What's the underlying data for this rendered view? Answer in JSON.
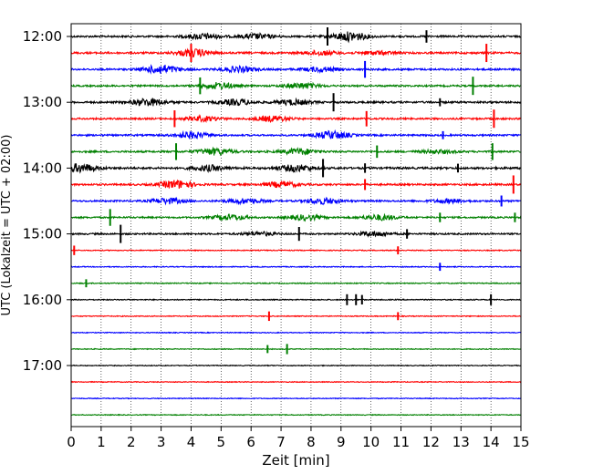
{
  "chart_data": {
    "type": "line",
    "title": "",
    "xlabel": "Zeit  [min]",
    "ylabel": "UTC (Lokalzeit = UTC + 02:00)",
    "xlim": [
      0,
      15
    ],
    "x_ticks": [
      0,
      1,
      2,
      3,
      4,
      5,
      6,
      7,
      8,
      9,
      10,
      11,
      12,
      13,
      14,
      15
    ],
    "y_tick_labels": [
      "12:00",
      "13:00",
      "14:00",
      "15:00",
      "16:00",
      "17:00"
    ],
    "grid": "vertical dotted lines at each minute",
    "line_colors": [
      "#000000",
      "#ff0000",
      "#0000ff",
      "#008000"
    ],
    "series": [
      {
        "start": "12:00",
        "color": "#000000",
        "level": 0.55,
        "bursts": [
          [
            4.4,
            0.6
          ],
          [
            6.2,
            0.55
          ],
          [
            9.3,
            1.0
          ]
        ],
        "spikes": [
          [
            8.55,
            1.0
          ],
          [
            11.85,
            0.6
          ]
        ]
      },
      {
        "start": "12:15",
        "color": "#ff0000",
        "level": 0.6,
        "bursts": [
          [
            4.1,
            0.8
          ],
          [
            8.3,
            0.45
          ],
          [
            10.2,
            0.35
          ]
        ],
        "spikes": [
          [
            4.0,
            1.0
          ],
          [
            13.85,
            1.0
          ]
        ]
      },
      {
        "start": "12:30",
        "color": "#0000ff",
        "level": 0.55,
        "bursts": [
          [
            3.0,
            0.95
          ],
          [
            5.6,
            0.6
          ],
          [
            8.3,
            0.5
          ]
        ],
        "spikes": [
          [
            9.8,
            0.9
          ]
        ]
      },
      {
        "start": "12:45",
        "color": "#008000",
        "level": 0.5,
        "bursts": [
          [
            4.9,
            0.7
          ],
          [
            7.7,
            0.6
          ]
        ],
        "spikes": [
          [
            4.3,
            0.9
          ],
          [
            13.4,
            1.0
          ]
        ]
      },
      {
        "start": "13:00",
        "color": "#000000",
        "level": 0.6,
        "bursts": [
          [
            2.6,
            0.8
          ],
          [
            5.5,
            0.6
          ],
          [
            7.4,
            0.55
          ]
        ],
        "spikes": [
          [
            8.75,
            1.0
          ],
          [
            12.3,
            0.3
          ]
        ]
      },
      {
        "start": "13:15",
        "color": "#ff0000",
        "level": 0.5,
        "bursts": [
          [
            4.4,
            0.5
          ],
          [
            6.7,
            0.6
          ]
        ],
        "spikes": [
          [
            3.45,
            0.9
          ],
          [
            9.85,
            0.8
          ],
          [
            14.1,
            1.0
          ]
        ]
      },
      {
        "start": "13:30",
        "color": "#0000ff",
        "level": 0.5,
        "bursts": [
          [
            4.0,
            0.7
          ],
          [
            8.7,
            0.85
          ]
        ],
        "spikes": [
          [
            12.4,
            0.3
          ]
        ]
      },
      {
        "start": "13:45",
        "color": "#008000",
        "level": 0.55,
        "bursts": [
          [
            4.8,
            0.7
          ],
          [
            7.6,
            0.65
          ],
          [
            12.2,
            0.35
          ]
        ],
        "spikes": [
          [
            3.5,
            0.9
          ],
          [
            10.2,
            0.6
          ],
          [
            14.05,
            0.9
          ]
        ]
      },
      {
        "start": "14:00",
        "color": "#000000",
        "level": 0.65,
        "bursts": [
          [
            0.3,
            0.9
          ],
          [
            4.6,
            0.6
          ],
          [
            7.5,
            0.7
          ]
        ],
        "spikes": [
          [
            8.4,
            1.0
          ],
          [
            9.8,
            0.4
          ],
          [
            12.9,
            0.35
          ]
        ]
      },
      {
        "start": "14:15",
        "color": "#ff0000",
        "level": 0.55,
        "bursts": [
          [
            3.5,
            0.9
          ],
          [
            7.0,
            0.6
          ]
        ],
        "spikes": [
          [
            14.75,
            1.0
          ],
          [
            9.8,
            0.5
          ]
        ]
      },
      {
        "start": "14:30",
        "color": "#0000ff",
        "level": 0.5,
        "bursts": [
          [
            3.2,
            0.6
          ],
          [
            5.8,
            0.55
          ],
          [
            8.4,
            0.65
          ],
          [
            12.6,
            0.4
          ]
        ],
        "spikes": [
          [
            14.35,
            0.5
          ]
        ]
      },
      {
        "start": "14:45",
        "color": "#008000",
        "level": 0.45,
        "bursts": [
          [
            5.3,
            0.6
          ],
          [
            7.8,
            0.55
          ],
          [
            10.3,
            0.6
          ]
        ],
        "spikes": [
          [
            1.3,
            0.9
          ],
          [
            12.3,
            0.4
          ],
          [
            14.8,
            0.4
          ]
        ]
      },
      {
        "start": "15:00",
        "color": "#000000",
        "level": 0.45,
        "bursts": [
          [
            6.3,
            0.4
          ],
          [
            10.1,
            0.5
          ]
        ],
        "spikes": [
          [
            1.65,
            1.0
          ],
          [
            7.6,
            0.7
          ],
          [
            11.2,
            0.4
          ]
        ]
      },
      {
        "start": "15:15",
        "color": "#ff0000",
        "level": 0.12,
        "bursts": [],
        "spikes": [
          [
            0.1,
            0.4
          ],
          [
            10.9,
            0.3
          ]
        ]
      },
      {
        "start": "15:30",
        "color": "#0000ff",
        "level": 0.12,
        "bursts": [],
        "spikes": [
          [
            12.3,
            0.3
          ]
        ]
      },
      {
        "start": "15:45",
        "color": "#008000",
        "level": 0.15,
        "bursts": [],
        "spikes": [
          [
            0.5,
            0.3
          ]
        ]
      },
      {
        "start": "16:00",
        "color": "#000000",
        "level": 0.18,
        "bursts": [],
        "spikes": [
          [
            9.2,
            0.5
          ],
          [
            9.5,
            0.5
          ],
          [
            9.7,
            0.4
          ],
          [
            14.0,
            0.5
          ]
        ]
      },
      {
        "start": "16:15",
        "color": "#ff0000",
        "level": 0.1,
        "bursts": [],
        "spikes": [
          [
            6.6,
            0.4
          ],
          [
            10.9,
            0.3
          ]
        ]
      },
      {
        "start": "16:30",
        "color": "#0000ff",
        "level": 0.08,
        "bursts": [],
        "spikes": []
      },
      {
        "start": "16:45",
        "color": "#008000",
        "level": 0.1,
        "bursts": [],
        "spikes": [
          [
            6.55,
            0.3
          ],
          [
            7.2,
            0.45
          ]
        ]
      },
      {
        "start": "17:00",
        "color": "#000000",
        "level": 0.08,
        "bursts": [],
        "spikes": []
      },
      {
        "start": "17:15",
        "color": "#ff0000",
        "level": 0.07,
        "bursts": [],
        "spikes": []
      },
      {
        "start": "17:30",
        "color": "#0000ff",
        "level": 0.07,
        "bursts": [],
        "spikes": []
      },
      {
        "start": "17:45",
        "color": "#008000",
        "level": 0.07,
        "bursts": [],
        "spikes": []
      }
    ]
  }
}
